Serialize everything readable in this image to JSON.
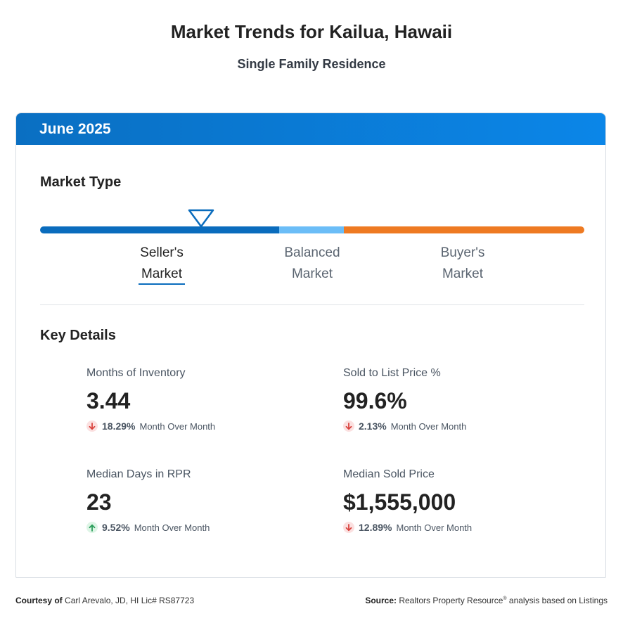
{
  "header": {
    "title": "Market Trends for Kailua, Hawaii",
    "subtitle": "Single Family Residence"
  },
  "card": {
    "period": "June 2025",
    "market_type": {
      "heading": "Market Type",
      "segments": [
        {
          "line1": "Seller's",
          "line2": "Market",
          "color": "#0a6cbd",
          "active": true
        },
        {
          "line1": "Balanced",
          "line2": "Market",
          "color": "#6bbdf7",
          "active": false
        },
        {
          "line1": "Buyer's",
          "line2": "Market",
          "color": "#ee7a22",
          "active": false
        }
      ],
      "selected": "Seller's Market"
    },
    "key_details": {
      "heading": "Key Details",
      "metrics": [
        {
          "label": "Months of Inventory",
          "value": "3.44",
          "direction": "down",
          "change": "18.29%",
          "change_label": "Month Over Month"
        },
        {
          "label": "Sold to List Price %",
          "value": "99.6%",
          "direction": "down",
          "change": "2.13%",
          "change_label": "Month Over Month"
        },
        {
          "label": "Median Days in RPR",
          "value": "23",
          "direction": "up",
          "change": "9.52%",
          "change_label": "Month Over Month"
        },
        {
          "label": "Median Sold Price",
          "value": "$1,555,000",
          "direction": "down",
          "change": "12.89%",
          "change_label": "Month Over Month"
        }
      ]
    }
  },
  "footer": {
    "courtesy_label": "Courtesy of",
    "courtesy_text": "Carl Arevalo, JD, HI Lic# RS87723",
    "source_label": "Source:",
    "source_text_1": "Realtors Property Resource",
    "source_reg": "®",
    "source_text_2": " analysis based on Listings"
  },
  "colors": {
    "header_blue": "#0a6fc2",
    "seller_blue": "#0a6cbd",
    "balanced_light_blue": "#6bbdf7",
    "buyer_orange": "#ee7a22",
    "down_red": "#d9423d",
    "up_green": "#2a9d5a"
  }
}
